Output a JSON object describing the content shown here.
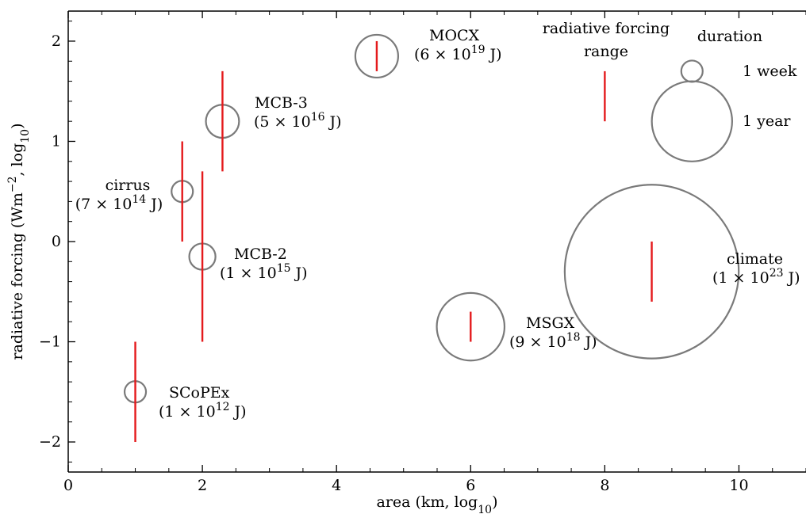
{
  "chart_data": {
    "type": "scatter",
    "xlabel": "area (km, log10)",
    "ylabel": "radiative forcing (Wm−2, log10)",
    "xlim": [
      0,
      11
    ],
    "ylim": [
      -2.3,
      2.3
    ],
    "xticks": [
      0,
      2,
      4,
      6,
      8,
      10
    ],
    "yticks": [
      -2,
      -1,
      0,
      1,
      2
    ],
    "grid": false,
    "ylabel_parts": {
      "main": "radiative forcing (Wm",
      "sup": "−2",
      "mid": ", log",
      "sub": "10",
      "end": ")"
    },
    "xlabel_parts": {
      "main": "area (km, log",
      "sub": "10",
      "end": ")"
    },
    "experiments": [
      {
        "name": "SCoPEx",
        "energy_text": "(1 × 10",
        "energy_exp": "12",
        "energy_unit": " J)",
        "x": 1.0,
        "y": -1.5,
        "forcing_range": [
          -2.0,
          -1.0
        ],
        "duration_weeks": 1.0
      },
      {
        "name": "cirrus",
        "energy_text": "(7 × 10",
        "energy_exp": "14",
        "energy_unit": " J)",
        "x": 1.7,
        "y": 0.5,
        "forcing_range": [
          0.0,
          1.0
        ],
        "duration_weeks": 1.0
      },
      {
        "name": "MCB-2",
        "energy_text": "(1 × 10",
        "energy_exp": "15",
        "energy_unit": " J)",
        "x": 2.0,
        "y": -0.15,
        "forcing_range": [
          -1.0,
          0.7
        ],
        "duration_weeks": 1.5
      },
      {
        "name": "MCB-3",
        "energy_text": "(5 × 10",
        "energy_exp": "16",
        "energy_unit": " J)",
        "x": 2.3,
        "y": 1.2,
        "forcing_range": [
          0.7,
          1.7
        ],
        "duration_weeks": 2.4
      },
      {
        "name": "MOCX",
        "energy_text": "(6 × 10",
        "energy_exp": "19",
        "energy_unit": " J)",
        "x": 4.6,
        "y": 1.85,
        "forcing_range": [
          1.7,
          2.0
        ],
        "duration_weeks": 4.0
      },
      {
        "name": "MSGX",
        "energy_text": "(9 × 10",
        "energy_exp": "18",
        "energy_unit": " J)",
        "x": 6.0,
        "y": -0.85,
        "forcing_range": [
          -1.0,
          -0.7
        ],
        "duration_weeks": 10.0
      },
      {
        "name": "climate",
        "energy_text": "(1 × 10",
        "energy_exp": "23",
        "energy_unit": " J)",
        "x": 8.7,
        "y": -0.3,
        "forcing_range": [
          -0.6,
          0.0
        ],
        "duration_weeks": 66.0
      }
    ],
    "legend": {
      "range_title_line1": "radiative forcing",
      "range_title_line2": "range",
      "range_example": [
        1.2,
        1.7
      ],
      "range_x": 8.0,
      "duration_title": "duration",
      "duration_items": [
        {
          "label": "1 week",
          "x": 9.3,
          "y": 1.7,
          "duration_weeks": 1.0
        },
        {
          "label": "1 year",
          "x": 9.3,
          "y": 1.2,
          "duration_weeks": 52.0
        }
      ]
    },
    "colors": {
      "range_line": "#e41a1c",
      "circle": "#7a7a7a",
      "axis": "#000000"
    }
  }
}
